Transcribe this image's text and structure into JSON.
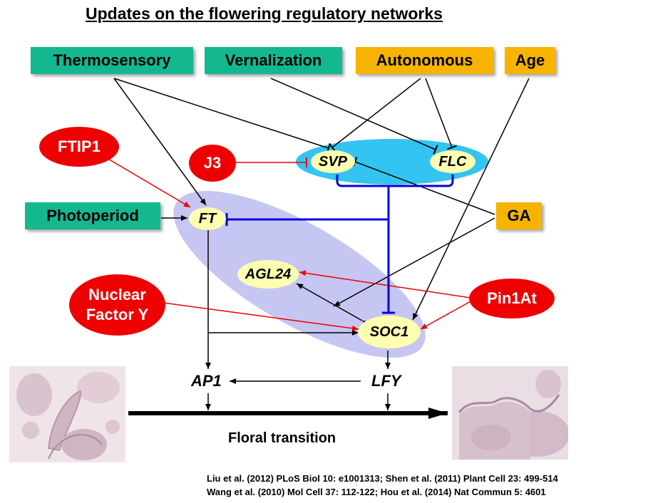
{
  "title": "Updates on the flowering regulatory networks",
  "pathways": {
    "thermosensory": "Thermosensory",
    "vernalization": "Vernalization",
    "autonomous": "Autonomous",
    "age": "Age",
    "photoperiod": "Photoperiod",
    "ga": "GA"
  },
  "regulators": {
    "ftip1": "FTIP1",
    "j3": "J3",
    "nfy_line1": "Nuclear",
    "nfy_line2": "Factor Y",
    "pin1at": "Pin1At"
  },
  "genes": {
    "svp": "SVP",
    "flc": "FLC",
    "ft": "FT",
    "agl24": "AGL24",
    "soc1": "SOC1",
    "ap1": "AP1",
    "lfy": "LFY"
  },
  "transition_label": "Floral transition",
  "references": {
    "line1": "Liu et al. (2012) PLoS Biol 10: e1001313; Shen et al. (2011) Plant Cell 23: 499-514",
    "line2": "Wang et al. (2010) Mol Cell 37: 112-122; Hou et al. (2014) Nat Commun 5: 4601"
  },
  "colors": {
    "pathway_green": "#14b890",
    "pathway_orange": "#f6b400",
    "regulator_red": "#ee0000",
    "gene_yellow": "#ffffb2",
    "repression_blue": "#0000dd",
    "svp_flc_cloud": "#33c4f2",
    "ft_soc1_cloud": "#c6c6f2"
  }
}
